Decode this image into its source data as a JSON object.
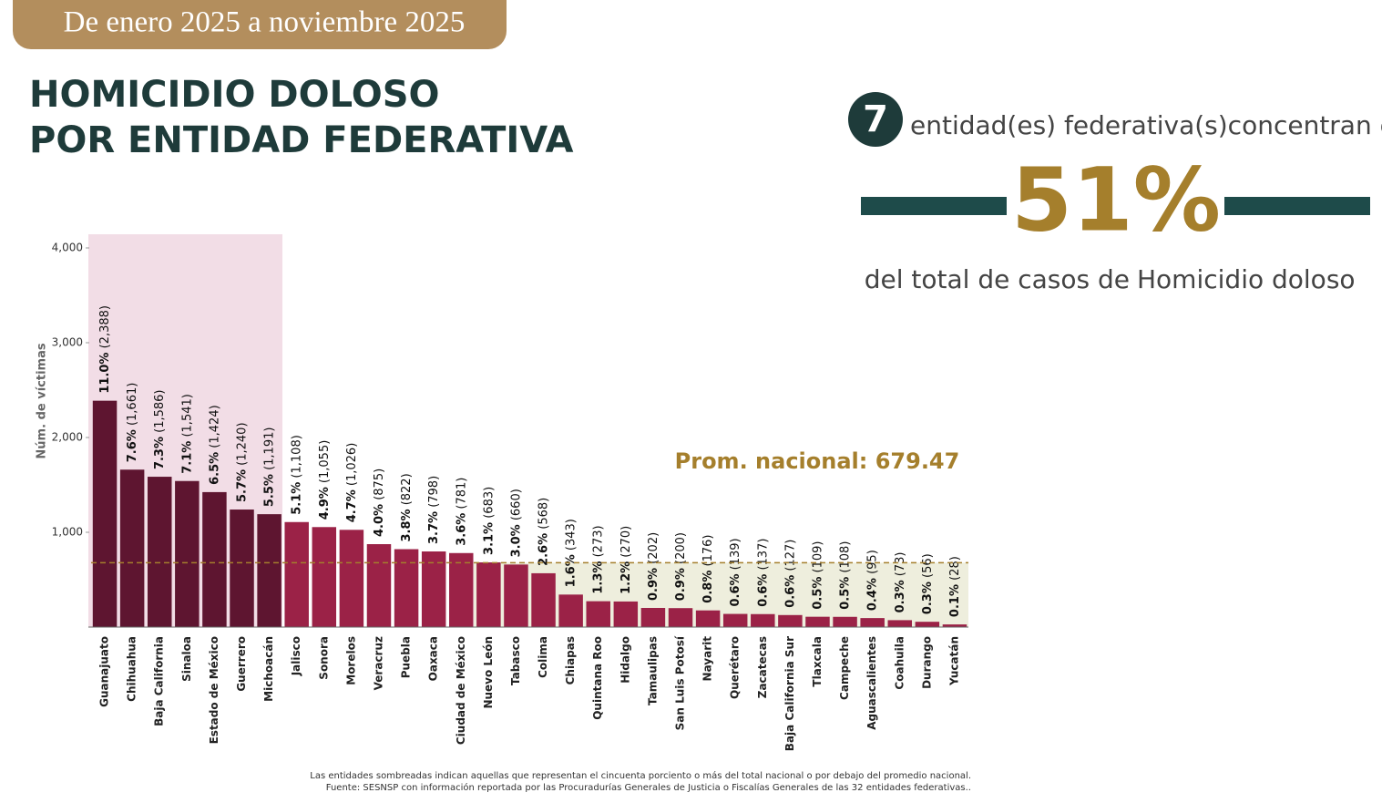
{
  "header": {
    "period": "De enero 2025 a noviembre 2025",
    "title_line1": "HOMICIDIO DOLOSO",
    "title_line2": "POR ENTIDAD FEDERATIVA"
  },
  "summary": {
    "count": "7",
    "text1": "entidad(es) federativa(s)concentran el",
    "share": "51%",
    "text2": "del total de casos de",
    "text3": "Homicidio doloso"
  },
  "chart_data": {
    "type": "bar",
    "y_label": "Núm. de víctimas",
    "categories": [
      "Guanajuato",
      "Chihuahua",
      "Baja California",
      "Sinaloa",
      "Estado de México",
      "Guerrero",
      "Michoacán",
      "Jalisco",
      "Sonora",
      "Morelos",
      "Veracruz",
      "Puebla",
      "Oaxaca",
      "Ciudad de México",
      "Nuevo León",
      "Tabasco",
      "Colima",
      "Chiapas",
      "Quintana Roo",
      "Hidalgo",
      "Tamaulipas",
      "San Luis Potosí",
      "Nayarit",
      "Querétaro",
      "Zacatecas",
      "Baja California Sur",
      "Tlaxcala",
      "Campeche",
      "Aguascalientes",
      "Coahuila",
      "Durango",
      "Yucatán"
    ],
    "values": [
      2388,
      1661,
      1586,
      1541,
      1424,
      1240,
      1191,
      1108,
      1055,
      1026,
      875,
      822,
      798,
      781,
      683,
      660,
      568,
      343,
      273,
      270,
      202,
      200,
      176,
      139,
      137,
      127,
      109,
      108,
      95,
      73,
      56,
      28
    ],
    "value_labels": [
      "(2,388)",
      "(1,661)",
      "(1,586)",
      "(1,541)",
      "(1,424)",
      "(1,240)",
      "(1,191)",
      "(1,108)",
      "(1,055)",
      "(1,026)",
      "(875)",
      "(822)",
      "(798)",
      "(781)",
      "(683)",
      "(660)",
      "(568)",
      "(343)",
      "(273)",
      "(270)",
      "(202)",
      "(200)",
      "(176)",
      "(139)",
      "(137)",
      "(127)",
      "(109)",
      "(108)",
      "(95)",
      "(73)",
      "(56)",
      "(28)"
    ],
    "percent_labels": [
      "11.0%",
      "7.6%",
      "7.3%",
      "7.1%",
      "6.5%",
      "5.7%",
      "5.5%",
      "5.1%",
      "4.9%",
      "4.7%",
      "4.0%",
      "3.8%",
      "3.7%",
      "3.6%",
      "3.1%",
      "3.0%",
      "2.6%",
      "1.6%",
      "1.3%",
      "1.2%",
      "0.9%",
      "0.9%",
      "0.8%",
      "0.6%",
      "0.6%",
      "0.6%",
      "0.5%",
      "0.5%",
      "0.4%",
      "0.3%",
      "0.3%",
      "0.1%"
    ],
    "colors": [
      "#5e1530",
      "#5e1530",
      "#5e1530",
      "#5e1530",
      "#5e1530",
      "#5e1530",
      "#5e1530",
      "#9b2247",
      "#9b2247",
      "#9b2247",
      "#9b2247",
      "#9b2247",
      "#9b2247",
      "#9b2247",
      "#9b2247",
      "#9b2247",
      "#9b2247",
      "#9b2247",
      "#9b2247",
      "#9b2247",
      "#9b2247",
      "#9b2247",
      "#9b2247",
      "#9b2247",
      "#9b2247",
      "#9b2247",
      "#9b2247",
      "#9b2247",
      "#9b2247",
      "#9b2247",
      "#9b2247",
      "#9b2247"
    ],
    "ylim": [
      0,
      4000
    ],
    "yticks": [
      {
        "value": 1000,
        "label": "1,000"
      },
      {
        "value": 2000,
        "label": "2,000"
      },
      {
        "value": 3000,
        "label": "3,000"
      },
      {
        "value": 4000,
        "label": "4,000"
      }
    ],
    "average": 679.47,
    "average_label": "Prom. nacional: 679.47",
    "notes": [
      "Las entidades sombreadas indican aquellas que representan el cincuenta porciento o más del total nacional o por debajo del promedio nacional.",
      "Fuente: SESNSP con información reportada por las Procuradurías Generales de Justicia o Fiscalías Generales de las 32 entidades federativas.."
    ]
  }
}
